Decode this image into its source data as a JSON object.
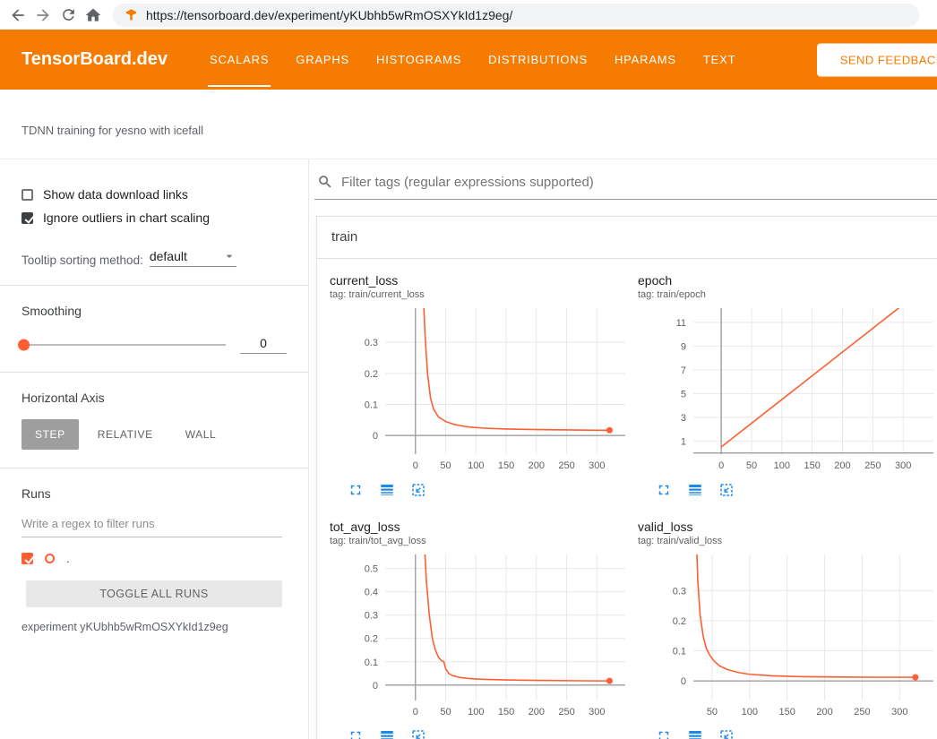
{
  "colors": {
    "header_orange": "#f57c00",
    "accent_orange": "#ff5e33",
    "icon_blue": "#1e88e5"
  },
  "browser": {
    "url": "https://tensorboard.dev/experiment/yKUbhb5wRmOSXYkId1z9eg/",
    "icons": [
      "back-icon",
      "forward-icon",
      "reload-icon",
      "home-icon",
      "tensorboard-favicon"
    ]
  },
  "header": {
    "brand": "TensorBoard.dev",
    "tabs": [
      {
        "label": "SCALARS",
        "active": true
      },
      {
        "label": "GRAPHS",
        "active": false
      },
      {
        "label": "HISTOGRAMS",
        "active": false
      },
      {
        "label": "DISTRIBUTIONS",
        "active": false
      },
      {
        "label": "HPARAMS",
        "active": false
      },
      {
        "label": "TEXT",
        "active": false
      }
    ],
    "feedback_label": "SEND FEEDBACK"
  },
  "experiment": {
    "description": "TDNN training for yesno with icefall",
    "footer": "experiment yKUbhb5wRmOSXYkId1z9eg"
  },
  "sidebar": {
    "show_download": {
      "label": "Show data download links",
      "checked": false
    },
    "ignore_outliers": {
      "label": "Ignore outliers in chart scaling",
      "checked": true
    },
    "tooltip_sorting": {
      "label": "Tooltip sorting method:",
      "value": "default"
    },
    "smoothing": {
      "label": "Smoothing",
      "value": "0"
    },
    "horizontal_axis": {
      "label": "Horizontal Axis",
      "options": [
        "STEP",
        "RELATIVE",
        "WALL"
      ],
      "selected": "STEP"
    },
    "runs": {
      "label": "Runs",
      "filter_placeholder": "Write a regex to filter runs",
      "items": [
        {
          "name": ".",
          "checked": true,
          "color": "#ff5e33"
        }
      ],
      "toggle_all_label": "TOGGLE ALL RUNS"
    }
  },
  "main": {
    "filter_placeholder": "Filter tags (regular expressions supported)",
    "section_label": "train",
    "chart_toolbar_icons": [
      "expand-icon",
      "log-scale-icon",
      "fit-domain-icon"
    ]
  },
  "chart_data": [
    {
      "type": "line",
      "title": "current_loss",
      "tag": "tag: train/current_loss",
      "xlim": [
        -50,
        347
      ],
      "ylim": [
        -0.06,
        0.41
      ],
      "xticks": [
        0,
        50,
        100,
        150,
        200,
        250,
        300
      ],
      "yticks": [
        0,
        0.1,
        0.2,
        0.3
      ],
      "series": [
        {
          "name": ".",
          "color": "#ff5e33",
          "x": [
            3,
            8,
            12,
            16,
            20,
            25,
            30,
            38,
            50,
            65,
            85,
            110,
            150,
            200,
            250,
            300,
            321
          ],
          "y": [
            1.5,
            0.8,
            0.5,
            0.32,
            0.2,
            0.12,
            0.085,
            0.06,
            0.045,
            0.035,
            0.028,
            0.024,
            0.021,
            0.019,
            0.018,
            0.017,
            0.017
          ],
          "end_dot": true
        }
      ]
    },
    {
      "type": "line",
      "title": "epoch",
      "tag": "tag: train/epoch",
      "xlim": [
        -46,
        350
      ],
      "ylim": [
        -0.1,
        12.2
      ],
      "xticks": [
        0,
        50,
        100,
        150,
        200,
        250,
        300
      ],
      "yticks": [
        1,
        3,
        5,
        7,
        9,
        11
      ],
      "series": [
        {
          "name": ".",
          "color": "#ff5e33",
          "x": [
            0,
            325
          ],
          "y": [
            0.5,
            13.5
          ],
          "end_dot": false
        }
      ]
    },
    {
      "type": "line",
      "title": "tot_avg_loss",
      "tag": "tag: train/tot_avg_loss",
      "xlim": [
        -50,
        347
      ],
      "ylim": [
        -0.066,
        0.56
      ],
      "xticks": [
        0,
        50,
        100,
        150,
        200,
        250,
        300
      ],
      "yticks": [
        0,
        0.1,
        0.2,
        0.3,
        0.4,
        0.5
      ],
      "series": [
        {
          "name": ".",
          "color": "#ff5e33",
          "x": [
            3,
            8,
            13,
            18,
            23,
            28,
            33,
            38,
            43,
            47,
            50,
            55,
            62,
            75,
            90,
            110,
            150,
            200,
            250,
            300,
            321
          ],
          "y": [
            2.0,
            1.2,
            0.7,
            0.45,
            0.3,
            0.2,
            0.15,
            0.12,
            0.105,
            0.1,
            0.07,
            0.05,
            0.04,
            0.032,
            0.028,
            0.025,
            0.022,
            0.02,
            0.019,
            0.018,
            0.018
          ],
          "end_dot": true
        }
      ]
    },
    {
      "type": "line",
      "title": "valid_loss",
      "tag": "tag: train/valid_loss",
      "xlim": [
        25,
        345
      ],
      "ylim": [
        -0.065,
        0.42
      ],
      "xticks": [
        50,
        100,
        150,
        200,
        250,
        300
      ],
      "yticks": [
        0,
        0.1,
        0.2,
        0.3
      ],
      "series": [
        {
          "name": ".",
          "color": "#ff5e33",
          "x": [
            26,
            28,
            31,
            34,
            38,
            42,
            47,
            53,
            60,
            70,
            85,
            100,
            130,
            170,
            220,
            270,
            321
          ],
          "y": [
            1.0,
            0.55,
            0.33,
            0.22,
            0.15,
            0.11,
            0.085,
            0.065,
            0.05,
            0.038,
            0.028,
            0.022,
            0.017,
            0.014,
            0.013,
            0.012,
            0.012
          ],
          "end_dot": true
        }
      ]
    }
  ]
}
